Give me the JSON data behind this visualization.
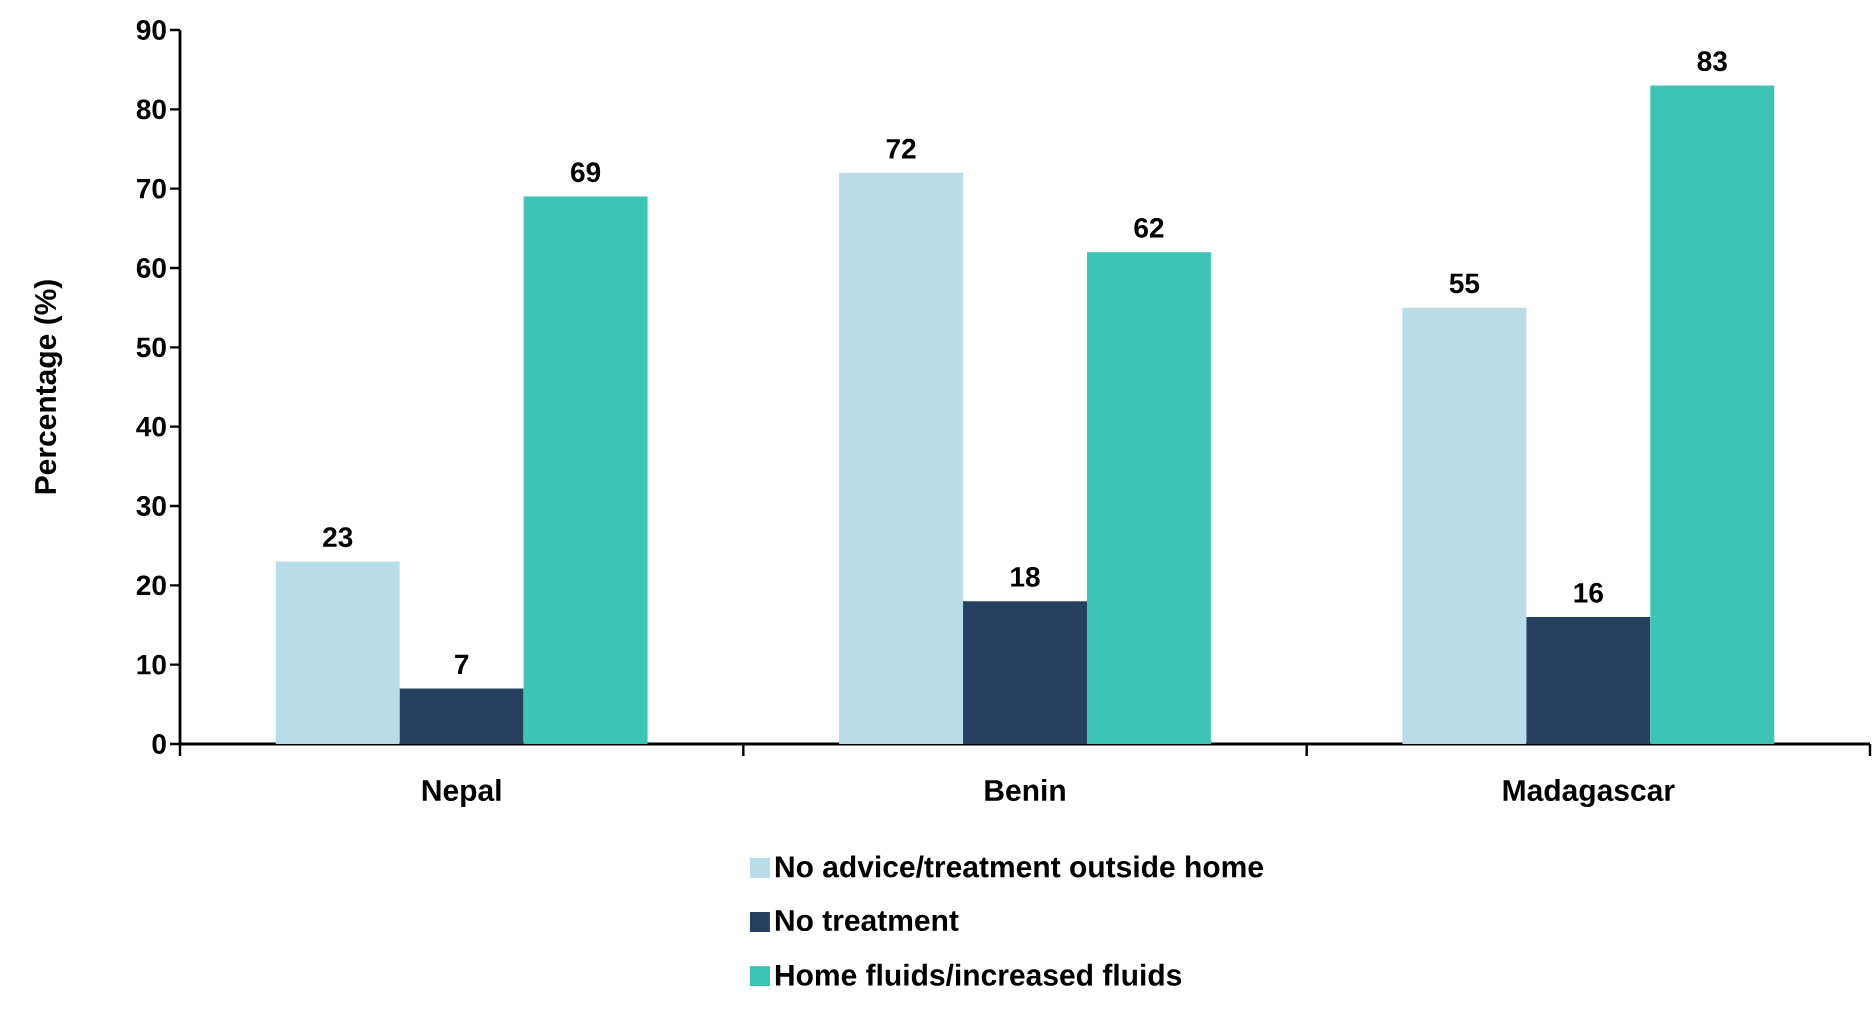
{
  "chart_data": {
    "type": "bar",
    "categories": [
      "Nepal",
      "Benin",
      "Madagascar"
    ],
    "series": [
      {
        "name": "No advice/treatment outside home",
        "color": "#b8dde8",
        "values": [
          23,
          72,
          55
        ]
      },
      {
        "name": "No treatment",
        "color": "#27405f",
        "values": [
          7,
          18,
          16
        ]
      },
      {
        "name": "Home fluids/increased fluids",
        "color": "#3cc4b4",
        "values": [
          69,
          62,
          83
        ]
      }
    ],
    "ylabel": "Percentage (%)",
    "ylim": [
      0,
      90
    ],
    "yticks": [
      0,
      10,
      20,
      30,
      40,
      50,
      60,
      70,
      80,
      90
    ],
    "data_labels": true,
    "legend": "bottom",
    "grid": false
  }
}
